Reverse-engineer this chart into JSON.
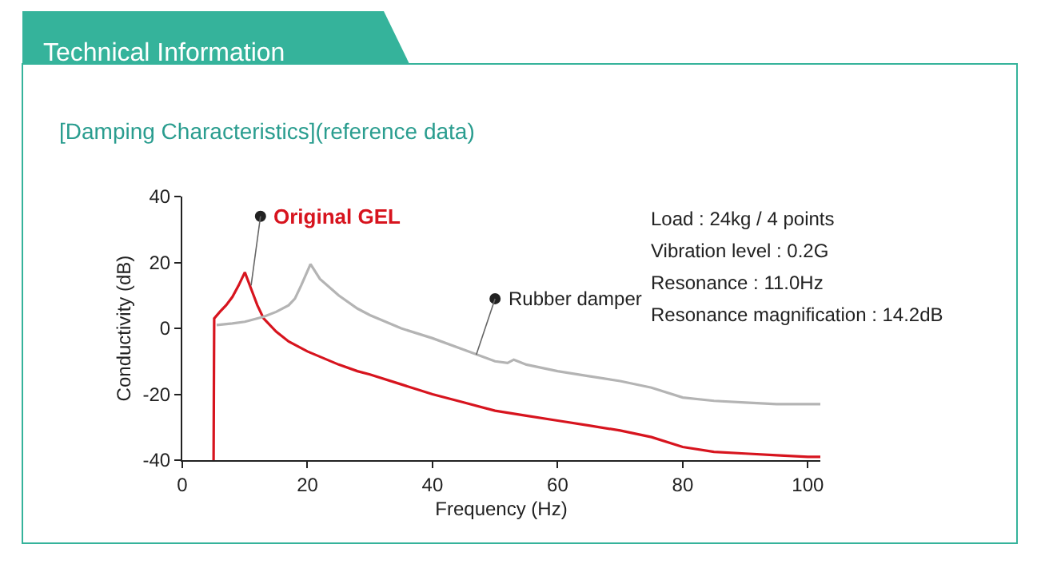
{
  "chart_data": {
    "type": "line",
    "title": "Technical Information",
    "subtitle": "[Damping Characteristics](reference data)",
    "xlabel": "Frequency (Hz)",
    "ylabel": "Conductivity (dB)",
    "series": [
      {
        "name": "Original GEL",
        "color": "#d7141e",
        "x": [
          5,
          5.1,
          6,
          7,
          8,
          9,
          10,
          11,
          12,
          13,
          15,
          17,
          20,
          25,
          28,
          30,
          35,
          40,
          45,
          50,
          55,
          60,
          65,
          70,
          75,
          80,
          85,
          90,
          95,
          100,
          102
        ],
        "values": [
          -40,
          3,
          5,
          7,
          9.5,
          13,
          17,
          12,
          7,
          3,
          -1,
          -4,
          -7,
          -11,
          -13,
          -14,
          -17,
          -20,
          -22.5,
          -25,
          -26.5,
          -28,
          -29.5,
          -31,
          -33,
          -36,
          -37.5,
          -38,
          -38.5,
          -39,
          -39
        ]
      },
      {
        "name": "Rubber damper",
        "color": "#b4b4b4",
        "x": [
          5.5,
          8,
          10,
          13,
          15,
          17,
          18,
          19,
          20.5,
          22,
          25,
          28,
          30,
          35,
          40,
          45,
          50,
          52,
          53,
          55,
          60,
          65,
          70,
          75,
          80,
          85,
          90,
          95,
          100,
          102
        ],
        "values": [
          1,
          1.5,
          2,
          3.5,
          5,
          7,
          9,
          13,
          19.5,
          15,
          10,
          6,
          4,
          0,
          -3,
          -6.5,
          -10,
          -10.5,
          -9.5,
          -11,
          -13,
          -14.5,
          -16,
          -18,
          -21,
          -22,
          -22.5,
          -23,
          -23,
          -23
        ]
      }
    ],
    "xlim": [
      0,
      102
    ],
    "xticks": [
      0,
      20,
      40,
      60,
      80,
      100
    ],
    "ylim": [
      -40,
      40
    ],
    "yticks": [
      -40,
      -20,
      0,
      20,
      40
    ],
    "legend": false,
    "marker": "none",
    "line_style": "solid",
    "annotations": [
      "Load : 24kg / 4 points",
      "Vibration level : 0.2G",
      "Resonance : 11.0Hz",
      "Resonance magnification : 14.2dB"
    ]
  }
}
